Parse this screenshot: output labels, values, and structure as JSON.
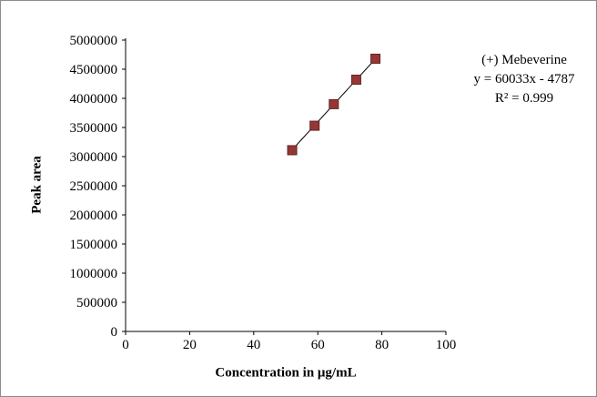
{
  "figure": {
    "background": "#ffffff",
    "border_color": "#8c8c8c"
  },
  "chart_data": {
    "type": "scatter",
    "title": "",
    "xlabel": "Concentration in μg/mL",
    "ylabel": "Peak area",
    "x": [
      52,
      59,
      65,
      72,
      78
    ],
    "y": [
      3110000,
      3530000,
      3900000,
      4320000,
      4680000
    ],
    "xlim": [
      0,
      100
    ],
    "ylim": [
      0,
      5000000
    ],
    "x_ticks": [
      0,
      20,
      40,
      60,
      80,
      100
    ],
    "y_ticks": [
      0,
      500000,
      1000000,
      1500000,
      2000000,
      2500000,
      3000000,
      3500000,
      4000000,
      4500000,
      5000000
    ],
    "grid": false,
    "legend": "none",
    "marker": {
      "shape": "square",
      "color": "#953735",
      "border": "#632423",
      "size": 10
    },
    "trendline": {
      "slope": 60033,
      "intercept": -4787,
      "color": "#000000"
    },
    "annotation": {
      "lines": [
        "(+) Mebeverine",
        "y = 60033x - 4787",
        "R² = 0.999"
      ]
    }
  }
}
